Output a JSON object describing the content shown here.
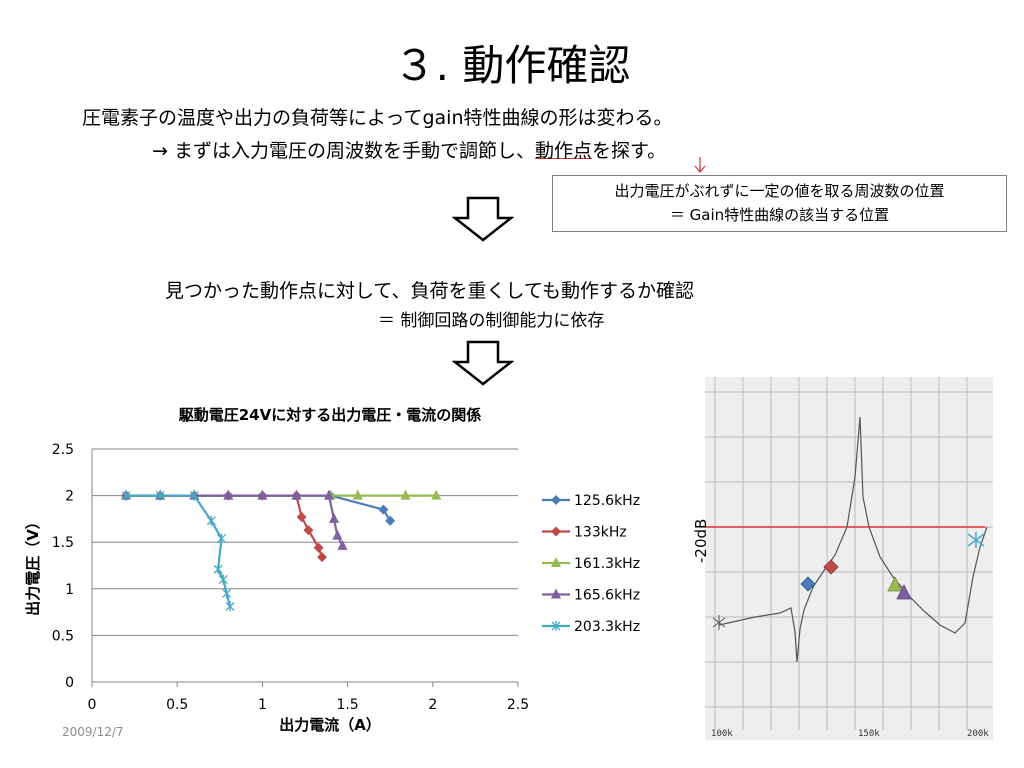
{
  "slide": {
    "title": "３. 動作確認",
    "line1": "圧電素子の温度や出力の負荷等によってgain特性曲線の形は変わる。",
    "line2_prefix": "→  まずは入力電圧の周波数を手動で調節し、",
    "line2_underlined": "動作点",
    "line2_suffix": "を探す。",
    "callout_line1": "出力電圧がぶれずに一定の値を取る周波数の位置",
    "callout_line2": "＝  Gain特性曲線の該当する位置",
    "result_line1": "見つかった動作点に対して、負荷を重くしても動作するか確認",
    "result_line2": "＝  制御回路の制御能力に依存",
    "date": "2009/12/7"
  },
  "scan": {
    "db_label": "-20dB",
    "x_labels": [
      "100k",
      "150k",
      "200k"
    ]
  },
  "colors": {
    "s125": "#4a7ebb",
    "s133": "#be4b48",
    "s161": "#98b954",
    "s165": "#7d60a0",
    "s203": "#46aac5",
    "axis": "#868686",
    "grid": "#868686",
    "arrow": "#000000",
    "ref_line": "#e03030"
  },
  "chart_data": {
    "type": "scatter",
    "title": "駆動電圧24Vに対する出力電圧・電流の関係",
    "xlabel": "出力電流（A）",
    "ylabel": "出力電圧（V）",
    "xlim": [
      0,
      2.5
    ],
    "ylim": [
      0,
      2.5
    ],
    "xticks": [
      "0",
      "0.5",
      "1",
      "1.5",
      "2",
      "2.5"
    ],
    "yticks": [
      "0",
      "0.5",
      "1",
      "1.5",
      "2",
      "2.5"
    ],
    "grid": "horizontal",
    "legend": "right",
    "series": [
      {
        "name": "125.6kHz",
        "marker": "diamond",
        "color_key": "s125",
        "x": [
          0.2,
          0.4,
          0.6,
          0.8,
          1.0,
          1.2,
          1.4,
          1.71,
          1.75
        ],
        "y": [
          2.0,
          2.0,
          2.0,
          2.0,
          2.0,
          2.0,
          2.0,
          1.85,
          1.73
        ]
      },
      {
        "name": "133kHz",
        "marker": "diamond",
        "color_key": "s133",
        "x": [
          0.2,
          0.4,
          0.6,
          0.8,
          1.0,
          1.2,
          1.23,
          1.27,
          1.33,
          1.35
        ],
        "y": [
          2.0,
          2.0,
          2.0,
          2.0,
          2.0,
          2.0,
          1.77,
          1.63,
          1.44,
          1.34
        ]
      },
      {
        "name": "161.3kHz",
        "marker": "triangle",
        "color_key": "s161",
        "x": [
          0.2,
          0.4,
          0.6,
          0.8,
          1.0,
          1.2,
          1.4,
          1.56,
          1.84,
          2.02
        ],
        "y": [
          2.0,
          2.0,
          2.0,
          2.0,
          2.0,
          2.0,
          2.0,
          2.0,
          2.0,
          2.0
        ]
      },
      {
        "name": "165.6kHz",
        "marker": "triangle",
        "color_key": "s165",
        "x": [
          0.2,
          0.4,
          0.6,
          0.8,
          1.0,
          1.2,
          1.39,
          1.42,
          1.44,
          1.47
        ],
        "y": [
          2.0,
          2.0,
          2.0,
          2.0,
          2.0,
          2.0,
          2.0,
          1.75,
          1.57,
          1.46
        ]
      },
      {
        "name": "203.3kHz",
        "marker": "star",
        "color_key": "s203",
        "x": [
          0.2,
          0.4,
          0.6,
          0.7,
          0.76,
          0.74,
          0.77,
          0.79,
          0.81
        ],
        "y": [
          2.0,
          2.0,
          2.0,
          1.73,
          1.54,
          1.21,
          1.1,
          0.95,
          0.81
        ]
      }
    ]
  }
}
